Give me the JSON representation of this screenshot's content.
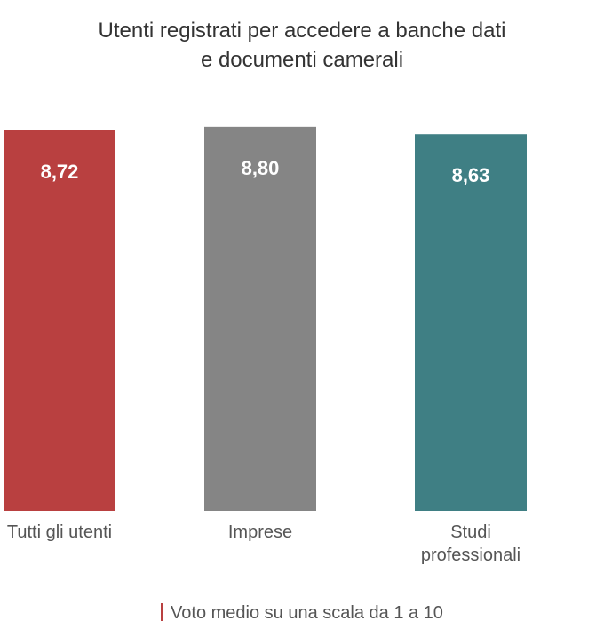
{
  "chart_data": {
    "type": "bar",
    "title_lines": [
      "Utenti registrati per accedere a banche dati",
      "e documenti camerali"
    ],
    "categories": [
      [
        "Tutti gli utenti"
      ],
      [
        "Imprese"
      ],
      [
        "Studi",
        "professionali"
      ]
    ],
    "values": [
      8.72,
      8.8,
      8.63
    ],
    "value_labels": [
      "8,72",
      "8,80",
      "8,63"
    ],
    "colors": [
      "#b94040",
      "#858585",
      "#3f7f84"
    ],
    "ylim": [
      0,
      9
    ],
    "grid": false,
    "legend": {
      "placement": "bottom-center",
      "text": "Voto medio su una scala da 1 a 10",
      "marker_color": "#b94040"
    }
  }
}
